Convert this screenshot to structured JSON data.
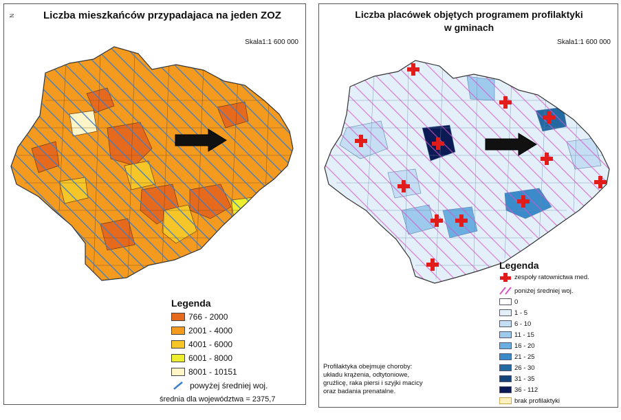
{
  "left_map": {
    "title": "Liczba mieszkańców przypadajaca na jeden ZOZ",
    "scale": "Skala1:1 600 000",
    "legend_title": "Legenda",
    "legend_items": [
      {
        "label": "766 - 2000",
        "color": "#e56a1e"
      },
      {
        "label": "2001 - 4000",
        "color": "#f39a1f"
      },
      {
        "label": "4001 - 6000",
        "color": "#f6c629"
      },
      {
        "label": "6001 - 8000",
        "color": "#eeee30"
      },
      {
        "label": "8001 - 10151",
        "color": "#fff5c6"
      }
    ],
    "hatch_label": "powyżej średniej woj.",
    "hatch_color": "#3c7ec8",
    "average_note": "średnia dla województwa = 2375,7"
  },
  "right_map": {
    "title_line1": "Liczba placówek objętych programem profilaktyki",
    "title_line2": "w gminach",
    "scale": "Skala1:1 600 000",
    "legend_title": "Legenda",
    "symbol_label": "zespoły ratownictwa med.",
    "hatch_label": "poniżej średniej woj.",
    "hatch_color": "#d455c8",
    "cross_color": "#e21b1b",
    "legend_items": [
      {
        "label": "0",
        "color": "#ffffff"
      },
      {
        "label": "1 - 5",
        "color": "#e3f0fa"
      },
      {
        "label": "6 - 10",
        "color": "#c6def4"
      },
      {
        "label": "11 - 15",
        "color": "#9ecaee"
      },
      {
        "label": "16 - 20",
        "color": "#6aaee2"
      },
      {
        "label": "21 - 25",
        "color": "#3b8bcb"
      },
      {
        "label": "26 - 30",
        "color": "#236aa3"
      },
      {
        "label": "31 - 35",
        "color": "#15447a"
      },
      {
        "label": "36 - 112",
        "color": "#0b1a55"
      }
    ],
    "no_prevention_label": "brak profilaktyki",
    "no_prevention_color": "#fff0c0",
    "note_lines": [
      "Profilaktyka obejmuje choroby:",
      "układu krążenia, odtytoniowe,",
      "gruźlicę, raka piersi i szyjki macicy",
      "oraz badania prenatalne."
    ]
  }
}
